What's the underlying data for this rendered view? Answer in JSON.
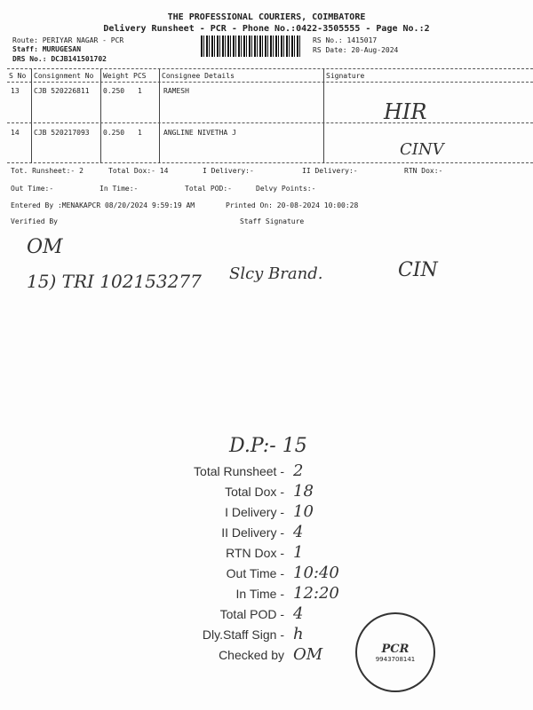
{
  "header": {
    "company": "THE PROFESSIONAL COURIERS, COIMBATORE",
    "title": "Delivery Runsheet - PCR - Phone No.:0422-3505555 - Page No.:2",
    "route": "Route: PERIYAR NAGAR - PCR",
    "staff": "Staff: MURUGESAN",
    "drs": "DRS No.: DCJB141501702",
    "rs_no": "RS No.: 1415017",
    "rs_date": "RS Date: 20-Aug-2024"
  },
  "table": {
    "columns": [
      "S No",
      "Consignment No",
      "Weight",
      "PCS",
      "Consignee Details",
      "Signature"
    ],
    "rows": [
      {
        "sno": "13",
        "cons": "CJB 520226811",
        "weight": "0.250",
        "pcs": "1",
        "consignee": "RAMESH",
        "sign": "HIR"
      },
      {
        "sno": "14",
        "cons": "CJB 520217093",
        "weight": "0.250",
        "pcs": "1",
        "consignee": "ANGLINE NIVETHA J",
        "sign": "CINV"
      }
    ]
  },
  "summary": {
    "line1": [
      "Tot. Runsheet:- 2",
      "Total Dox:-  14",
      "I Delivery:-",
      "II Delivery:-",
      "RTN Dox:-"
    ],
    "line2": [
      "Out Time:-",
      "In Time:-",
      "Total POD:-",
      "Delvy Points:-"
    ],
    "entered": "Entered By :MENAKAPCR 08/20/2024 9:59:19 AM",
    "printed": "Printed On: 20-08-2024 10:00:28",
    "verified": "Verified By",
    "staff_sig": "Staff Signature"
  },
  "handwritten": {
    "initials": "OM",
    "note": "15) TRI 102153277",
    "name": "Slcy Brand.",
    "cin": "CIN",
    "dp": "D.P:- 15"
  },
  "stamp_block": {
    "items": [
      {
        "label": "Total Runsheet -",
        "value": "2"
      },
      {
        "label": "Total Dox -",
        "value": "18"
      },
      {
        "label": "I Delivery -",
        "value": "10"
      },
      {
        "label": "II Delivery -",
        "value": "4"
      },
      {
        "label": "RTN Dox -",
        "value": "1"
      },
      {
        "label": "Out Time -",
        "value": "10:40"
      },
      {
        "label": "In Time -",
        "value": "12:20"
      },
      {
        "label": "Total POD -",
        "value": "4"
      },
      {
        "label": "Dly.Staff Sign -",
        "value": "h"
      },
      {
        "label": "Checked by",
        "value": "OM"
      }
    ]
  },
  "seal": {
    "text": "PCR",
    "number": "9943708141"
  }
}
